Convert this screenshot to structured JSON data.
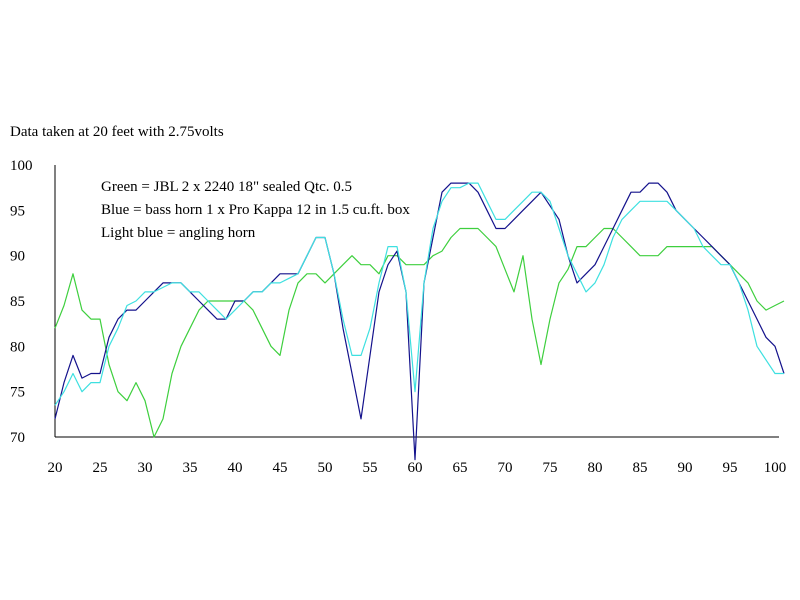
{
  "chart_data": {
    "type": "line",
    "title": "Data taken at 20 feet with 2.75volts",
    "annotations": [
      "Green = JBL 2 x 2240 18\" sealed Qtc. 0.5",
      "Blue = bass horn 1 x Pro Kappa 12 in 1.5 cu.ft. box",
      "Light blue = angling horn"
    ],
    "xlabel": "",
    "ylabel": "",
    "xlim": [
      20,
      101
    ],
    "ylim": [
      70,
      100
    ],
    "xticks": [
      20,
      25,
      30,
      35,
      40,
      45,
      50,
      55,
      60,
      65,
      70,
      75,
      80,
      85,
      90,
      95,
      100
    ],
    "yticks": [
      70,
      75,
      80,
      85,
      90,
      95,
      100
    ],
    "grid": false,
    "series": [
      {
        "color": "#3ecf3e",
        "x": [
          20,
          21,
          22,
          23,
          24,
          25,
          26,
          27,
          28,
          29,
          30,
          31,
          32,
          33,
          34,
          35,
          36,
          37,
          38,
          39,
          40,
          41,
          42,
          43,
          44,
          45,
          46,
          47,
          48,
          49,
          50,
          51,
          52,
          53,
          54,
          55,
          56,
          57,
          58,
          59,
          60,
          61,
          62,
          63,
          64,
          65,
          66,
          67,
          68,
          69,
          70,
          71,
          72,
          73,
          74,
          75,
          76,
          77,
          78,
          79,
          80,
          81,
          82,
          83,
          84,
          85,
          86,
          87,
          88,
          89,
          90,
          91,
          92,
          93,
          94,
          95,
          96,
          97,
          98,
          99,
          100,
          101
        ],
        "y": [
          82,
          84.5,
          88,
          84,
          83,
          83,
          78,
          75,
          74,
          76,
          74,
          70,
          72,
          77,
          80,
          82,
          84,
          85,
          85,
          85,
          85,
          85,
          84,
          82,
          80,
          79,
          84,
          87,
          88,
          88,
          87,
          88,
          89,
          90,
          89,
          89,
          88,
          90,
          90,
          89,
          89,
          89,
          90,
          90.5,
          92,
          93,
          93,
          93,
          92,
          91,
          88.5,
          86,
          90,
          83,
          78,
          83,
          87,
          88.5,
          91,
          91,
          92,
          93,
          93,
          92,
          91,
          90,
          90,
          90,
          91,
          91,
          91,
          91,
          91,
          91,
          90,
          89,
          88,
          87,
          85,
          84,
          84.5,
          85
        ]
      },
      {
        "color": "#14128c",
        "x": [
          20,
          21,
          22,
          23,
          24,
          25,
          26,
          27,
          28,
          29,
          30,
          31,
          32,
          33,
          34,
          35,
          36,
          37,
          38,
          39,
          40,
          41,
          42,
          43,
          44,
          45,
          46,
          47,
          48,
          49,
          50,
          51,
          52,
          53,
          54,
          55,
          56,
          57,
          58,
          59,
          60,
          61,
          62,
          63,
          64,
          65,
          66,
          67,
          68,
          69,
          70,
          71,
          72,
          73,
          74,
          75,
          76,
          77,
          78,
          79,
          80,
          81,
          82,
          83,
          84,
          85,
          86,
          87,
          88,
          89,
          90,
          91,
          92,
          93,
          94,
          95,
          96,
          97,
          98,
          99,
          100,
          101
        ],
        "y": [
          72,
          76,
          79,
          76.5,
          77,
          77,
          81,
          83,
          84,
          84,
          85,
          86,
          87,
          87,
          87,
          86,
          85,
          84,
          83,
          83,
          85,
          85,
          86,
          86,
          87,
          88,
          88,
          88,
          90,
          92,
          92,
          88,
          82,
          77,
          72,
          79,
          86,
          89,
          90.5,
          86,
          67.5,
          87,
          92,
          97,
          98,
          98,
          98,
          97,
          95,
          93,
          93,
          94,
          95,
          96,
          97,
          95.5,
          94,
          90,
          87,
          88,
          89,
          91,
          93,
          95,
          97,
          97,
          98,
          98,
          97,
          95,
          94,
          93,
          92,
          91,
          90,
          89,
          87,
          85,
          83,
          81,
          80,
          77
        ]
      },
      {
        "color": "#3ee0e0",
        "x": [
          20,
          21,
          22,
          23,
          24,
          25,
          26,
          27,
          28,
          29,
          30,
          31,
          32,
          33,
          34,
          35,
          36,
          37,
          38,
          39,
          40,
          41,
          42,
          43,
          44,
          45,
          46,
          47,
          48,
          49,
          50,
          51,
          52,
          53,
          54,
          55,
          56,
          57,
          58,
          59,
          60,
          61,
          62,
          63,
          64,
          65,
          66,
          67,
          68,
          69,
          70,
          71,
          72,
          73,
          74,
          75,
          76,
          77,
          78,
          79,
          80,
          81,
          82,
          83,
          84,
          85,
          86,
          87,
          88,
          89,
          90,
          91,
          92,
          93,
          94,
          95,
          96,
          97,
          98,
          99,
          100,
          101
        ],
        "y": [
          73.5,
          75,
          77,
          75,
          76,
          76,
          80,
          82,
          84.5,
          85,
          86,
          86,
          86.5,
          87,
          87,
          86,
          86,
          85,
          84,
          83,
          84,
          85,
          86,
          86,
          87,
          87,
          87.5,
          88,
          90,
          92,
          92,
          88,
          83,
          79,
          79,
          82,
          87,
          91,
          91,
          86,
          75,
          87,
          93,
          96,
          97.5,
          97.5,
          98,
          98,
          96,
          94,
          94,
          95,
          96,
          97,
          97,
          96,
          93,
          90,
          88,
          86,
          87,
          89,
          92,
          94,
          95,
          96,
          96,
          96,
          96,
          95,
          94,
          93,
          91,
          90,
          89,
          89,
          87,
          84,
          80,
          78.5,
          77,
          77
        ]
      }
    ]
  }
}
